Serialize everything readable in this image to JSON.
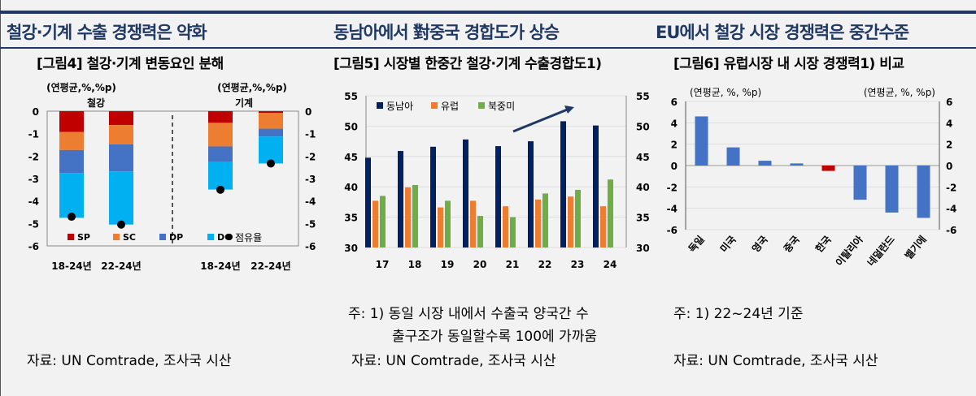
{
  "headings": [
    "철강·기계 수출 경쟁력은 약화",
    "동남아에서 對중국 경합도가 상승",
    "EU에서 철강 시장 경쟁력은 중간수준"
  ],
  "figures": [
    "[그림4] 철강·기계 변동요인 분해",
    "[그림5] 시장별 한중간 철강·기계 수출경합도1)",
    "[그림6] 유럽시장 내 시장 경쟁력1) 비교"
  ],
  "notes": {
    "fig5": [
      "주: 1)  동일 시장 내에서 수출국 양국간 수",
      "출구조가 동일할수록 100에 가까움"
    ],
    "fig6": "주: 1)  22~24년  기준",
    "source": "자료: UN Comtrade,  조사국  시산"
  },
  "chart_data": [
    {
      "type": "bar",
      "stacked": true,
      "unit_left": "(연평균,%,%p)",
      "unit_right": "(연평균,%,%p)",
      "groups": [
        "철강",
        "기계"
      ],
      "categories": [
        "18-24년",
        "22-24년",
        "18-24년",
        "22-24년"
      ],
      "series": [
        {
          "name": "SP",
          "color": "#c00000",
          "values": [
            -0.93,
            -0.62,
            -0.52,
            -0.08
          ]
        },
        {
          "name": "SC",
          "color": "#ed7d31",
          "values": [
            -0.8,
            -0.86,
            -1.05,
            -0.7
          ]
        },
        {
          "name": "DP",
          "color": "#4472c4",
          "values": [
            -1.02,
            -1.2,
            -0.7,
            -0.35
          ]
        },
        {
          "name": "DC",
          "color": "#00b0f0",
          "values": [
            -2.0,
            -2.37,
            -1.22,
            -1.2
          ]
        }
      ],
      "marker": {
        "name": "점유율",
        "values": [
          -4.7,
          -5.05,
          -3.5,
          -2.33
        ]
      },
      "ylim": [
        -6,
        0
      ],
      "yticks": [
        0,
        -1,
        -2,
        -3,
        -4,
        -5,
        -6
      ]
    },
    {
      "type": "bar",
      "categories": [
        "17",
        "18",
        "19",
        "20",
        "21",
        "22",
        "23",
        "24"
      ],
      "series": [
        {
          "name": "동남아",
          "color": "#002060",
          "values": [
            44.8,
            45.9,
            46.6,
            47.8,
            46.7,
            47.5,
            50.8,
            50.1
          ]
        },
        {
          "name": "유럽",
          "color": "#ed7d31",
          "values": [
            37.7,
            39.9,
            36.6,
            37.7,
            36.8,
            37.9,
            38.4,
            36.8
          ]
        },
        {
          "name": "북중미",
          "color": "#70ad47",
          "values": [
            38.5,
            40.3,
            37.7,
            35.2,
            35.0,
            38.9,
            39.5,
            41.2
          ]
        }
      ],
      "ylim": [
        30,
        55
      ],
      "yticks": [
        55,
        50,
        45,
        40,
        35,
        30
      ],
      "annotation": "upward arrow 21→23"
    },
    {
      "type": "bar",
      "unit_left": "(연평균, %, %p)",
      "unit_right": "(연평균, %, %p)",
      "categories": [
        "독일",
        "미국",
        "영국",
        "중국",
        "한국",
        "이탈리아",
        "네덜란드",
        "벨기에"
      ],
      "values": [
        4.6,
        1.7,
        0.45,
        0.2,
        -0.5,
        -3.2,
        -4.4,
        -4.9
      ],
      "colors": {
        "default": "#4472c4",
        "highlight": "#c00000"
      },
      "highlight": "한국",
      "ylim": [
        -6,
        6
      ],
      "yticks": [
        6,
        4,
        2,
        0,
        -2,
        -4,
        -6
      ]
    }
  ]
}
